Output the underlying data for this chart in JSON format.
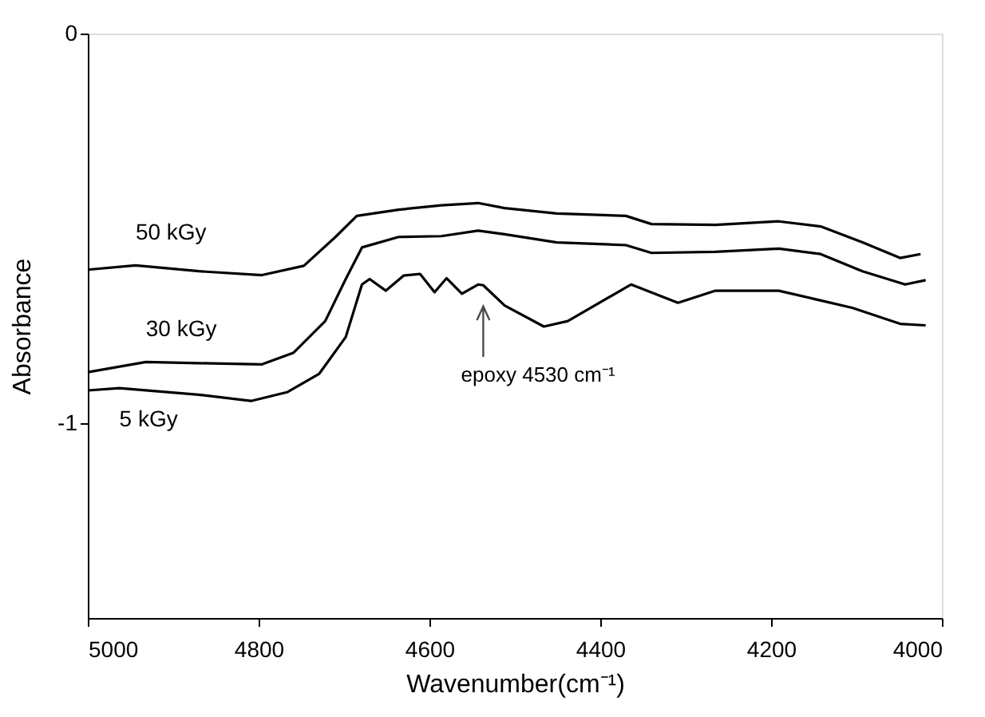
{
  "chart_data": {
    "type": "line",
    "xlabel": "Wavenumber(cm⁻¹)",
    "ylabel": "Absorbance",
    "xlim": [
      5000,
      4000
    ],
    "xticks": [
      5000,
      4800,
      4600,
      4400,
      4200,
      4000
    ],
    "ylim": [
      -1.5,
      0
    ],
    "yticks": [
      0,
      -1
    ],
    "grid": false,
    "marker": "none",
    "line_style": "solid",
    "annotations": [
      "epoxy 4530 cm⁻¹"
    ],
    "series": [
      {
        "name": "50 kGy",
        "color": "#000000",
        "x": [
          5000,
          4944,
          4870,
          4796,
          4747,
          4710,
          4685,
          4636,
          4586,
          4543,
          4512,
          4451,
          4370,
          4340,
          4265,
          4191,
          4142,
          4093,
          4049,
          4025
        ],
        "values": [
          -0.606,
          -0.595,
          -0.61,
          -0.62,
          -0.596,
          -0.522,
          -0.468,
          -0.452,
          -0.441,
          -0.435,
          -0.448,
          -0.462,
          -0.468,
          -0.489,
          -0.491,
          -0.482,
          -0.495,
          -0.536,
          -0.576,
          -0.566
        ]
      },
      {
        "name": "30 kGy",
        "color": "#000000",
        "x": [
          5000,
          4932,
          4870,
          4796,
          4759,
          4722,
          4698,
          4679,
          4636,
          4586,
          4543,
          4512,
          4451,
          4370,
          4340,
          4265,
          4191,
          4142,
          4093,
          4043,
          4019
        ],
        "values": [
          -0.869,
          -0.843,
          -0.846,
          -0.849,
          -0.819,
          -0.738,
          -0.63,
          -0.549,
          -0.522,
          -0.52,
          -0.506,
          -0.515,
          -0.536,
          -0.543,
          -0.563,
          -0.56,
          -0.552,
          -0.566,
          -0.61,
          -0.644,
          -0.633
        ]
      },
      {
        "name": "5 kGy",
        "color": "#000000",
        "x": [
          5000,
          4963,
          4870,
          4809,
          4766,
          4729,
          4698,
          4679,
          4670,
          4651,
          4630,
          4611,
          4594,
          4580,
          4562,
          4543,
          4537,
          4512,
          4466,
          4438,
          4364,
          4309,
          4265,
          4191,
          4105,
          4049,
          4019
        ],
        "values": [
          -0.916,
          -0.91,
          -0.927,
          -0.943,
          -0.92,
          -0.873,
          -0.779,
          -0.644,
          -0.63,
          -0.66,
          -0.621,
          -0.617,
          -0.664,
          -0.628,
          -0.668,
          -0.644,
          -0.646,
          -0.698,
          -0.752,
          -0.738,
          -0.644,
          -0.691,
          -0.66,
          -0.66,
          -0.704,
          -0.745,
          -0.749
        ]
      }
    ]
  }
}
